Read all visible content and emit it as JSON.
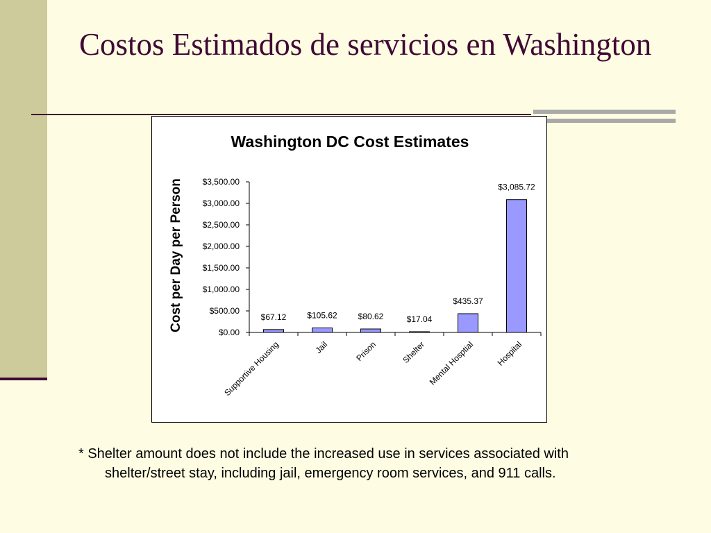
{
  "slide": {
    "title": "Costos Estimados de servicios en Washington",
    "footnote_line1": "* Shelter amount does not include the increased use in services associated with",
    "footnote_line2": "shelter/street stay, including jail, emergency room services, and 911 calls."
  },
  "colors": {
    "background": "#fefde3",
    "left_bar": "#cdcb9b",
    "accent": "#3f0a34",
    "bar_fill": "#9999ff"
  },
  "chart_data": {
    "type": "bar",
    "title": "Washington DC Cost Estimates",
    "ylabel": "Cost per Day per Person",
    "xlabel": "",
    "categories": [
      "Supportive Housing",
      "Jail",
      "Prison",
      "Shelter",
      "Mental Hosptial",
      "Hospital"
    ],
    "values": [
      67.12,
      105.62,
      80.62,
      17.04,
      435.37,
      3085.72
    ],
    "data_labels": [
      "$67.12",
      "$105.62",
      "$80.62",
      "$17.04",
      "$435.37",
      "$3,085.72"
    ],
    "ylim": [
      0,
      3500
    ],
    "yticks": [
      0,
      500,
      1000,
      1500,
      2000,
      2500,
      3000,
      3500
    ],
    "ytick_labels": [
      "$0.00",
      "$500.00",
      "$1,000.00",
      "$1,500.00",
      "$2,000.00",
      "$2,500.00",
      "$3,000.00",
      "$3,500.00"
    ],
    "grid": false,
    "legend": "none"
  }
}
